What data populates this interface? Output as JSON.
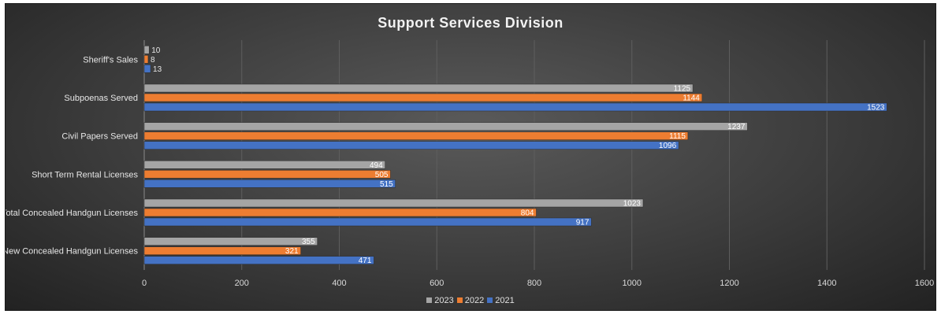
{
  "chart_data": {
    "type": "bar",
    "orientation": "horizontal",
    "title": "Support Services Division",
    "categories": [
      "Sheriff's Sales",
      "Subpoenas Served",
      "Civil Papers Served",
      "Short Term Rental Licenses",
      "Total Concealed Handgun Licenses",
      "New Concealed Handgun Licenses"
    ],
    "series": [
      {
        "name": "2023",
        "color": "#a5a5a5",
        "values": [
          10,
          1125,
          1237,
          494,
          1023,
          355
        ]
      },
      {
        "name": "2022",
        "color": "#ed7d31",
        "values": [
          8,
          1144,
          1115,
          505,
          804,
          321
        ]
      },
      {
        "name": "2021",
        "color": "#4472c4",
        "values": [
          13,
          1523,
          1096,
          515,
          917,
          471
        ]
      }
    ],
    "xlim": [
      0,
      1600
    ],
    "xticks": [
      "0",
      "200",
      "400",
      "600",
      "800",
      "1000",
      "1200",
      "1400",
      "1600"
    ],
    "grid": true,
    "legend_position": "bottom",
    "data_labels": true
  }
}
